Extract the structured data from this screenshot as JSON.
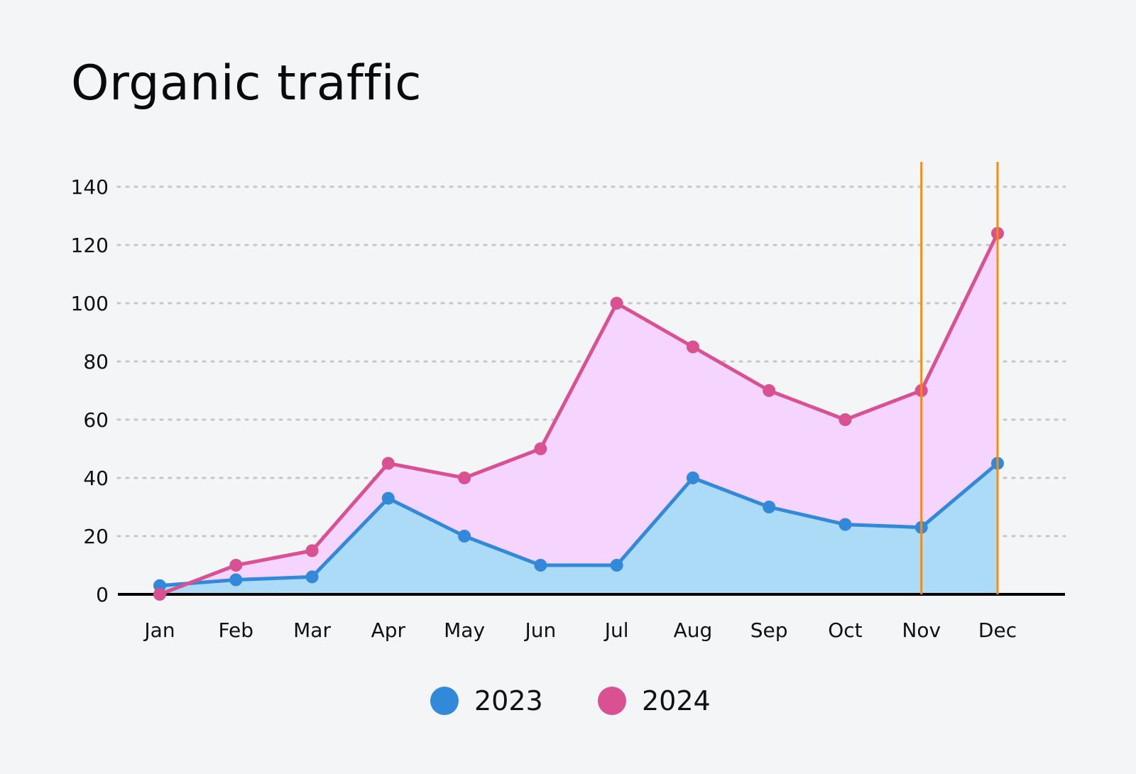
{
  "chart_data": {
    "type": "area",
    "title": "Organic traffic",
    "categories": [
      "Jan",
      "Feb",
      "Mar",
      "Apr",
      "May",
      "Jun",
      "Jul",
      "Aug",
      "Sep",
      "Oct",
      "Nov",
      "Dec"
    ],
    "series": [
      {
        "name": "2023",
        "values": [
          3,
          5,
          6,
          33,
          20,
          10,
          10,
          40,
          30,
          24,
          23,
          45
        ],
        "color": "#3389d9",
        "fill": "#acdbf7"
      },
      {
        "name": "2024",
        "values": [
          0,
          10,
          15,
          45,
          40,
          50,
          100,
          85,
          70,
          60,
          70,
          124
        ],
        "color": "#d95190",
        "fill": "#f5d4fd"
      }
    ],
    "ylim": [
      0,
      140
    ],
    "yticks": [
      0,
      20,
      40,
      60,
      80,
      100,
      120,
      140
    ],
    "grid": "horizontal dotted",
    "highlight_lines": {
      "categories": [
        "Nov",
        "Dec"
      ],
      "color": "#ff8a00"
    },
    "legend_position": "bottom-center"
  }
}
